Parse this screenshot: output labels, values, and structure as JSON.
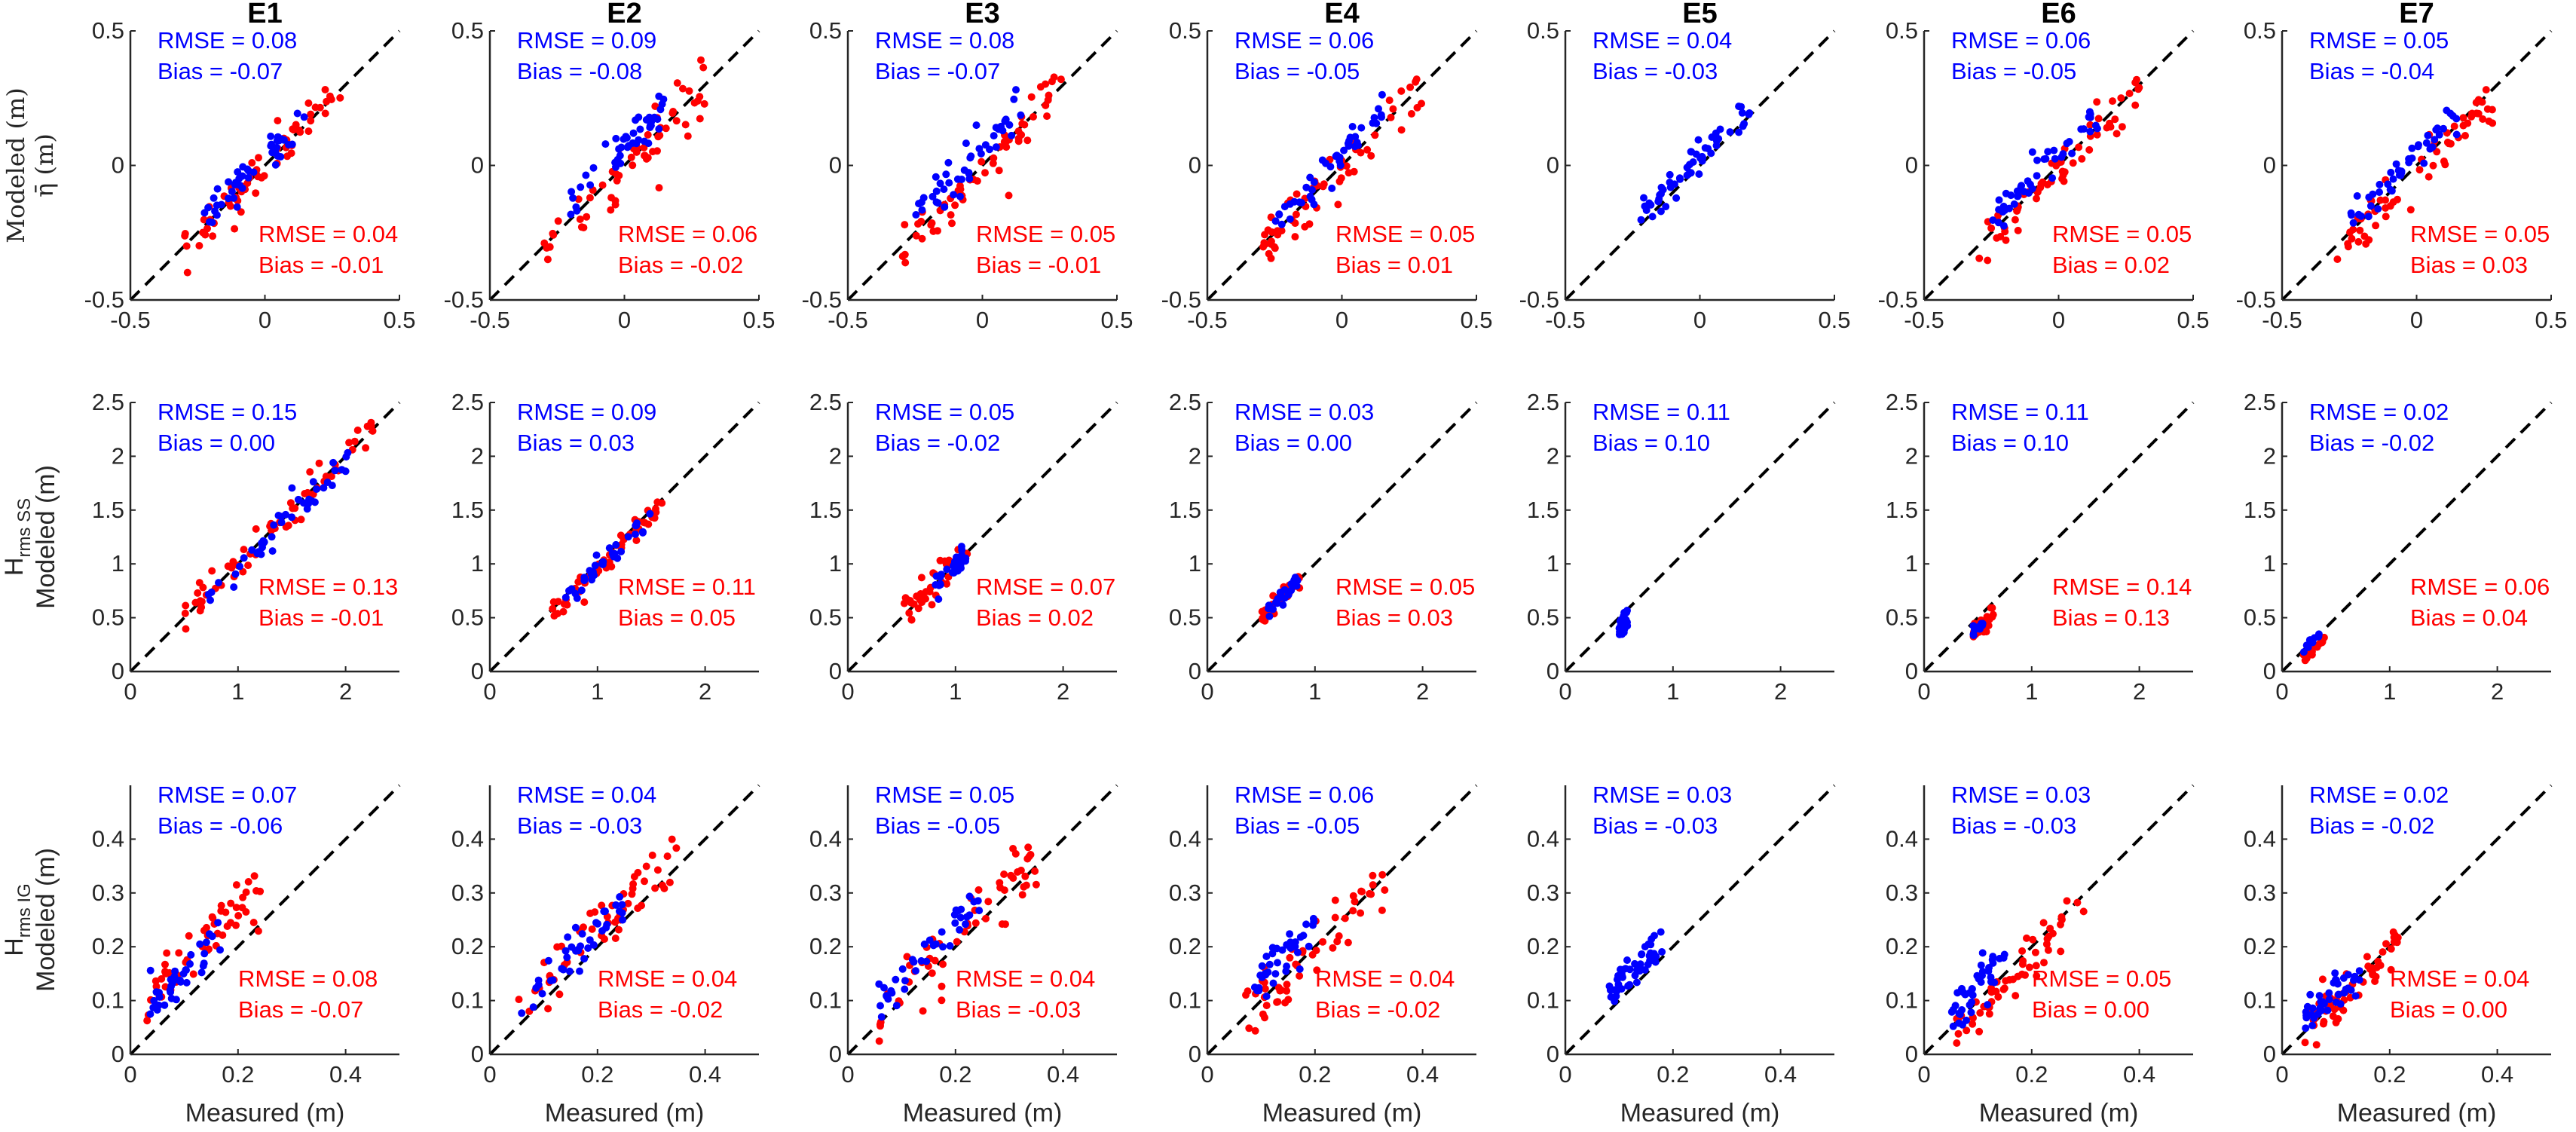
{
  "colors": {
    "blue": "#0000ff",
    "red": "#ff0000",
    "axis": "#262626",
    "dash": "#000000"
  },
  "chart_data": {
    "type": "scatter",
    "columns": [
      "E1",
      "E2",
      "E3",
      "E4",
      "E5",
      "E6",
      "E7"
    ],
    "xlabel": "Measured (m)",
    "rows": [
      {
        "key": "eta",
        "ylabel_symbol": "η̄ (m)",
        "ylabel_text": "Modeled (m)",
        "range": [
          -0.5,
          0.5
        ],
        "ticks": [
          -0.5,
          0,
          0.5
        ],
        "tick_labels": [
          "-0.5",
          "0",
          "0.5"
        ],
        "ytick_labels": [
          "-0.5",
          "0",
          "0.5"
        ]
      },
      {
        "key": "hss",
        "ylabel_main": "H",
        "ylabel_sub": "rms SS",
        "ylabel_text": "Modeled (m)",
        "range": [
          0,
          2.5
        ],
        "xticks": [
          0,
          1,
          2
        ],
        "tick_labels": [
          "0",
          "1",
          "2"
        ],
        "yticks": [
          0,
          0.5,
          1,
          1.5,
          2,
          2.5
        ],
        "ytick_labels": [
          "0",
          "0.5",
          "1",
          "1.5",
          "2",
          "2.5"
        ]
      },
      {
        "key": "hig",
        "ylabel_main": "H",
        "ylabel_sub": "rms IG",
        "ylabel_text": "Modeled (m)",
        "range": [
          0,
          0.5
        ],
        "xticks": [
          0,
          0.2,
          0.4
        ],
        "tick_labels": [
          "0",
          "0.2",
          "0.4"
        ],
        "yticks": [
          0,
          0.1,
          0.2,
          0.3,
          0.4
        ],
        "ytick_labels": [
          "0",
          "0.1",
          "0.2",
          "0.3",
          "0.4"
        ]
      }
    ],
    "stats": [
      [
        {
          "blue": [
            "RMSE = 0.08",
            "Bias = -0.07"
          ],
          "red": [
            "RMSE = 0.04",
            "Bias = -0.01"
          ]
        },
        {
          "blue": [
            "RMSE = 0.09",
            "Bias = -0.08"
          ],
          "red": [
            "RMSE = 0.06",
            "Bias = -0.02"
          ]
        },
        {
          "blue": [
            "RMSE = 0.08",
            "Bias = -0.07"
          ],
          "red": [
            "RMSE = 0.05",
            "Bias = -0.01"
          ]
        },
        {
          "blue": [
            "RMSE = 0.06",
            "Bias = -0.05"
          ],
          "red": [
            "RMSE = 0.05",
            "Bias = 0.01"
          ]
        },
        {
          "blue": [
            "RMSE = 0.04",
            "Bias = -0.03"
          ],
          "red": null
        },
        {
          "blue": [
            "RMSE = 0.06",
            "Bias = -0.05"
          ],
          "red": [
            "RMSE = 0.05",
            "Bias = 0.02"
          ]
        },
        {
          "blue": [
            "RMSE = 0.05",
            "Bias = -0.04"
          ],
          "red": [
            "RMSE = 0.05",
            "Bias = 0.03"
          ]
        }
      ],
      [
        {
          "blue": [
            "RMSE = 0.15",
            "Bias =  0.00"
          ],
          "red": [
            "RMSE = 0.13",
            "Bias = -0.01"
          ]
        },
        {
          "blue": [
            "RMSE = 0.09",
            "Bias = 0.03"
          ],
          "red": [
            "RMSE = 0.11",
            "Bias = 0.05"
          ]
        },
        {
          "blue": [
            "RMSE = 0.05",
            "Bias = -0.02"
          ],
          "red": [
            "RMSE = 0.07",
            "Bias = 0.02"
          ]
        },
        {
          "blue": [
            "RMSE = 0.03",
            "Bias = 0.00"
          ],
          "red": [
            "RMSE = 0.05",
            "Bias = 0.03"
          ]
        },
        {
          "blue": [
            "RMSE = 0.11",
            "Bias = 0.10"
          ],
          "red": null
        },
        {
          "blue": [
            "RMSE = 0.11",
            "Bias = 0.10"
          ],
          "red": [
            "RMSE = 0.14",
            "Bias = 0.13"
          ]
        },
        {
          "blue": [
            "RMSE = 0.02",
            "Bias = -0.02"
          ],
          "red": [
            "RMSE = 0.06",
            "Bias = 0.04"
          ]
        }
      ],
      [
        {
          "blue": [
            "RMSE = 0.07",
            "Bias = -0.06"
          ],
          "red": [
            "RMSE = 0.08",
            "Bias = -0.07"
          ]
        },
        {
          "blue": [
            "RMSE = 0.04",
            "Bias = -0.03"
          ],
          "red": [
            "RMSE = 0.04",
            "Bias = -0.02"
          ]
        },
        {
          "blue": [
            "RMSE = 0.05",
            "Bias = -0.05"
          ],
          "red": [
            "RMSE = 0.04",
            "Bias = -0.03"
          ]
        },
        {
          "blue": [
            "RMSE = 0.06",
            "Bias = -0.05"
          ],
          "red": [
            "RMSE = 0.04",
            "Bias = -0.02"
          ]
        },
        {
          "blue": [
            "RMSE = 0.03",
            "Bias = -0.03"
          ],
          "red": null
        },
        {
          "blue": [
            "RMSE = 0.03",
            "Bias = -0.03"
          ],
          "red": [
            "RMSE = 0.05",
            "Bias = 0.00"
          ]
        },
        {
          "blue": [
            "RMSE = 0.02",
            "Bias = -0.02"
          ],
          "red": [
            "RMSE = 0.04",
            "Bias =  0.00"
          ]
        }
      ]
    ],
    "clusters": [
      [
        {
          "blue": {
            "x": [
              -0.25,
              0.15
            ],
            "n": 45,
            "off": 0.03,
            "spread": 0.035
          },
          "red": {
            "x": [
              -0.3,
              0.3
            ],
            "n": 60,
            "off": 0.0,
            "spread": 0.04
          }
        },
        {
          "blue": {
            "x": [
              -0.25,
              0.15
            ],
            "n": 45,
            "off": 0.07,
            "spread": 0.04
          },
          "red": {
            "x": [
              -0.3,
              0.3
            ],
            "n": 60,
            "off": -0.01,
            "spread": 0.05
          }
        },
        {
          "blue": {
            "x": [
              -0.25,
              0.15
            ],
            "n": 45,
            "off": 0.06,
            "spread": 0.04
          },
          "red": {
            "x": [
              -0.3,
              0.3
            ],
            "n": 60,
            "off": 0.0,
            "spread": 0.05
          }
        },
        {
          "blue": {
            "x": [
              -0.25,
              0.15
            ],
            "n": 45,
            "off": 0.04,
            "spread": 0.035
          },
          "red": {
            "x": [
              -0.3,
              0.3
            ],
            "n": 60,
            "off": -0.01,
            "spread": 0.045
          }
        },
        {
          "blue": {
            "x": [
              -0.25,
              0.2
            ],
            "n": 55,
            "off": 0.03,
            "spread": 0.03
          },
          "red": null
        },
        {
          "blue": {
            "x": [
              -0.25,
              0.15
            ],
            "n": 45,
            "off": 0.05,
            "spread": 0.035
          },
          "red": {
            "x": [
              -0.3,
              0.3
            ],
            "n": 60,
            "off": -0.02,
            "spread": 0.045
          }
        },
        {
          "blue": {
            "x": [
              -0.25,
              0.15
            ],
            "n": 45,
            "off": 0.04,
            "spread": 0.035
          },
          "red": {
            "x": [
              -0.3,
              0.3
            ],
            "n": 60,
            "off": -0.03,
            "spread": 0.045
          }
        }
      ],
      [
        {
          "blue": {
            "x": [
              0.7,
              2.05
            ],
            "n": 45,
            "off": -0.05,
            "spread": 0.08
          },
          "red": {
            "x": [
              0.5,
              2.3
            ],
            "n": 60,
            "off": 0.02,
            "spread": 0.08
          }
        },
        {
          "blue": {
            "x": [
              0.7,
              1.5
            ],
            "n": 35,
            "off": -0.03,
            "spread": 0.04
          },
          "red": {
            "x": [
              0.5,
              1.6
            ],
            "n": 50,
            "off": -0.04,
            "spread": 0.05
          }
        },
        {
          "blue": {
            "x": [
              0.8,
              1.1
            ],
            "n": 30,
            "off": -0.02,
            "spread": 0.05
          },
          "red": {
            "x": [
              0.5,
              1.15
            ],
            "n": 40,
            "off": 0.0,
            "spread": 0.06
          }
        },
        {
          "blue": {
            "x": [
              0.55,
              0.85
            ],
            "n": 25,
            "off": 0.0,
            "spread": 0.04
          },
          "red": {
            "x": [
              0.5,
              0.9
            ],
            "n": 35,
            "off": 0.0,
            "spread": 0.05
          }
        },
        {
          "blue": {
            "x": [
              0.5,
              0.58
            ],
            "n": 30,
            "off": -0.1,
            "spread": 0.05
          },
          "red": null
        },
        {
          "blue": {
            "x": [
              0.45,
              0.55
            ],
            "n": 10,
            "off": -0.1,
            "spread": 0.03
          },
          "red": {
            "x": [
              0.45,
              0.65
            ],
            "n": 30,
            "off": -0.12,
            "spread": 0.04
          }
        },
        {
          "blue": {
            "x": [
              0.2,
              0.35
            ],
            "n": 10,
            "off": 0.0,
            "spread": 0.02
          },
          "red": {
            "x": [
              0.2,
              0.4
            ],
            "n": 20,
            "off": -0.08,
            "spread": 0.02
          }
        }
      ],
      [
        {
          "blue": {
            "x": [
              0.03,
              0.18
            ],
            "n": 40,
            "off": 0.05,
            "spread": 0.02
          },
          "red": {
            "x": [
              0.03,
              0.25
            ],
            "n": 55,
            "off": 0.07,
            "spread": 0.03
          }
        },
        {
          "blue": {
            "x": [
              0.05,
              0.25
            ],
            "n": 40,
            "off": 0.03,
            "spread": 0.02
          },
          "red": {
            "x": [
              0.05,
              0.35
            ],
            "n": 55,
            "off": 0.03,
            "spread": 0.03
          }
        },
        {
          "blue": {
            "x": [
              0.05,
              0.25
            ],
            "n": 40,
            "off": 0.04,
            "spread": 0.02
          },
          "red": {
            "x": [
              0.05,
              0.35
            ],
            "n": 55,
            "off": 0.02,
            "spread": 0.03
          }
        },
        {
          "blue": {
            "x": [
              0.08,
              0.2
            ],
            "n": 40,
            "off": 0.04,
            "spread": 0.02
          },
          "red": {
            "x": [
              0.07,
              0.33
            ],
            "n": 55,
            "off": 0.0,
            "spread": 0.03
          }
        },
        {
          "blue": {
            "x": [
              0.08,
              0.18
            ],
            "n": 50,
            "off": 0.03,
            "spread": 0.015
          },
          "red": null
        },
        {
          "blue": {
            "x": [
              0.05,
              0.15
            ],
            "n": 40,
            "off": 0.03,
            "spread": 0.02
          },
          "red": {
            "x": [
              0.05,
              0.3
            ],
            "n": 55,
            "off": -0.02,
            "spread": 0.02
          }
        },
        {
          "blue": {
            "x": [
              0.04,
              0.15
            ],
            "n": 40,
            "off": 0.02,
            "spread": 0.015
          },
          "red": {
            "x": [
              0.04,
              0.22
            ],
            "n": 55,
            "off": 0.0,
            "spread": 0.02
          }
        }
      ]
    ]
  }
}
